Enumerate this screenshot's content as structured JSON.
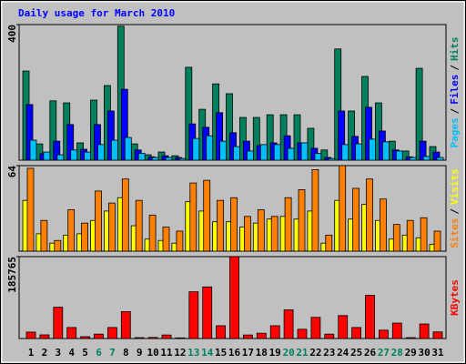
{
  "chart_data": [
    {
      "type": "bar",
      "title": "Daily usage for March 2010",
      "title_color": "#0000ff",
      "separator": "/",
      "ylim": [
        0,
        400
      ],
      "yticks": [
        400
      ],
      "series": [
        {
          "name": "Hits",
          "color": "#00805c",
          "values": [
            263,
            48,
            175,
            169,
            51,
            177,
            220,
            395,
            48,
            16,
            24,
            13,
            274,
            150,
            225,
            196,
            126,
            126,
            134,
            134,
            134,
            94,
            30,
            328,
            145,
            247,
            169,
            56,
            27,
            271,
            40
          ]
        },
        {
          "name": "Files",
          "color": "#0000ff",
          "values": [
            164,
            19,
            56,
            105,
            32,
            105,
            145,
            209,
            30,
            10,
            13,
            8,
            107,
            97,
            140,
            81,
            56,
            43,
            51,
            72,
            51,
            35,
            8,
            145,
            70,
            156,
            86,
            30,
            10,
            56,
            24
          ]
        },
        {
          "name": "Pages",
          "color": "#00c0ff",
          "values": [
            59,
            24,
            16,
            30,
            24,
            46,
            59,
            67,
            20,
            8,
            8,
            5,
            64,
            72,
            56,
            40,
            27,
            46,
            46,
            35,
            51,
            20,
            5,
            46,
            48,
            62,
            54,
            27,
            8,
            11,
            8
          ]
        }
      ]
    },
    {
      "type": "bar",
      "separator": "/",
      "ylim": [
        0,
        64
      ],
      "yticks": [
        64
      ],
      "series": [
        {
          "name": "Visits",
          "color": "#ffff00",
          "values": [
            38,
            13,
            6,
            12,
            13,
            23,
            30,
            40,
            19,
            9,
            8,
            6,
            37,
            30,
            22,
            22,
            18,
            21,
            24,
            26,
            24,
            30,
            6,
            38,
            24,
            35,
            23,
            9,
            12,
            10,
            5
          ]
        },
        {
          "name": "Sites",
          "color": "#ff8000",
          "values": [
            62,
            23,
            8,
            31,
            21,
            45,
            36,
            54,
            38,
            27,
            18,
            15,
            51,
            53,
            38,
            40,
            26,
            31,
            26,
            40,
            46,
            61,
            12,
            64,
            47,
            54,
            39,
            20,
            23,
            25,
            15
          ]
        }
      ]
    },
    {
      "type": "bar",
      "ylim": [
        0,
        185765
      ],
      "yticks": [
        185765
      ],
      "categories": [
        "1",
        "2",
        "3",
        "4",
        "5",
        "6",
        "7",
        "8",
        "9",
        "10",
        "11",
        "12",
        "13",
        "14",
        "15",
        "16",
        "17",
        "18",
        "19",
        "20",
        "21",
        "22",
        "23",
        "24",
        "25",
        "26",
        "27",
        "28",
        "29",
        "30",
        "31"
      ],
      "category_colors": [
        "#000000",
        "#000000",
        "#000000",
        "#000000",
        "#000000",
        "#00805c",
        "#00805c",
        "#000000",
        "#000000",
        "#000000",
        "#000000",
        "#000000",
        "#00805c",
        "#00805c",
        "#000000",
        "#000000",
        "#000000",
        "#000000",
        "#000000",
        "#00805c",
        "#00805c",
        "#000000",
        "#000000",
        "#000000",
        "#000000",
        "#000000",
        "#00805c",
        "#00805c",
        "#000000",
        "#000000",
        "#000000"
      ],
      "series": [
        {
          "name": "KBytes",
          "color": "#ff0000",
          "values": [
            14600,
            8300,
            71000,
            25000,
            4200,
            10000,
            25000,
            61000,
            2000,
            2500,
            8000,
            1500,
            106000,
            117000,
            29000,
            185765,
            8000,
            12000,
            29000,
            65000,
            21000,
            48000,
            10000,
            52000,
            25000,
            98000,
            19000,
            35000,
            2000,
            33000,
            15000
          ]
        }
      ]
    }
  ]
}
